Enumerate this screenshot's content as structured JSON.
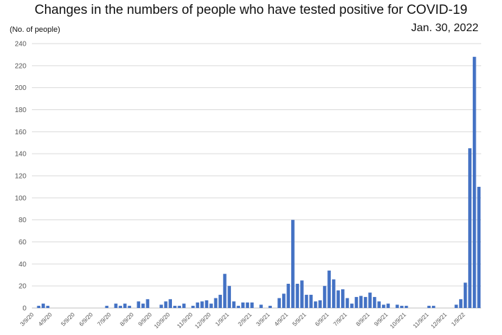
{
  "chart_data": {
    "type": "bar",
    "title": "Changes in the numbers of people who have tested positive for COVID-19",
    "ylabel": "(No. of people)",
    "date": "Jan. 30, 2022",
    "ylim": [
      0,
      240
    ],
    "yticks": [
      0,
      20,
      40,
      60,
      80,
      100,
      120,
      140,
      160,
      180,
      200,
      220,
      240
    ],
    "grid": true,
    "bar_color": "#4472C4",
    "x_tick_labels": [
      {
        "label": "3/9/20",
        "index": 0
      },
      {
        "label": "4/9/20",
        "index": 4
      },
      {
        "label": "5/9/20",
        "index": 9
      },
      {
        "label": "6/9/20",
        "index": 13
      },
      {
        "label": "7/9/20",
        "index": 17
      },
      {
        "label": "8/9/20",
        "index": 22
      },
      {
        "label": "9/9/20",
        "index": 26
      },
      {
        "label": "10/9/20",
        "index": 30
      },
      {
        "label": "11/9/20",
        "index": 35
      },
      {
        "label": "12/9/20",
        "index": 39
      },
      {
        "label": "1/9/21",
        "index": 43
      },
      {
        "label": "2/9/21",
        "index": 48
      },
      {
        "label": "3/9/21",
        "index": 52
      },
      {
        "label": "4/9/21",
        "index": 56
      },
      {
        "label": "5/9/21",
        "index": 60
      },
      {
        "label": "6/9/21",
        "index": 65
      },
      {
        "label": "7/9/21",
        "index": 69
      },
      {
        "label": "8/9/21",
        "index": 74
      },
      {
        "label": "9/9/21",
        "index": 78
      },
      {
        "label": "10/9/21",
        "index": 82
      },
      {
        "label": "11/9/21",
        "index": 87
      },
      {
        "label": "12/9/21",
        "index": 91
      },
      {
        "label": "1/9/22",
        "index": 95
      }
    ],
    "values": [
      0,
      2,
      4,
      2,
      0,
      0,
      0,
      0,
      0,
      0,
      0,
      0,
      0,
      0,
      0,
      0,
      2,
      0,
      4,
      2,
      4,
      2,
      0,
      6,
      4,
      8,
      0,
      0,
      3,
      6,
      8,
      2,
      2,
      4,
      0,
      2,
      5,
      6,
      7,
      4,
      9,
      12,
      31,
      20,
      6,
      2,
      5,
      5,
      5,
      0,
      3,
      0,
      2,
      0,
      9,
      13,
      22,
      80,
      22,
      25,
      12,
      12,
      6,
      7,
      20,
      34,
      26,
      16,
      17,
      9,
      4,
      10,
      11,
      10,
      14,
      10,
      6,
      3,
      4,
      0,
      3,
      2,
      2,
      0,
      0,
      0,
      0,
      2,
      2,
      0,
      0,
      0,
      0,
      3,
      8,
      23,
      145,
      228,
      110
    ]
  }
}
